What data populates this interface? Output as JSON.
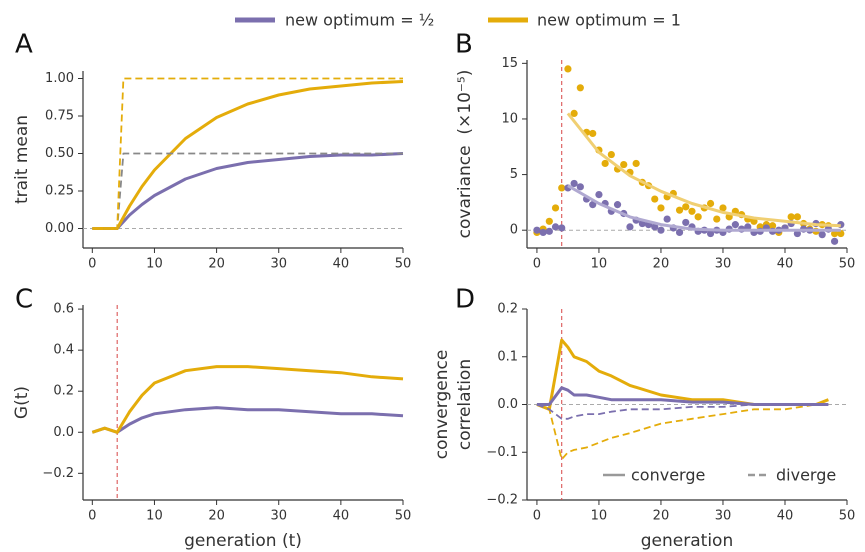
{
  "legend": [
    {
      "label": "new optimum = ½",
      "color": "#7b6fae"
    },
    {
      "label": "new optimum = 1",
      "color": "#e4ac0a"
    }
  ],
  "chart_data": [
    {
      "type": "line",
      "label": "A",
      "ylabel": "trait mean",
      "xlim": [
        -1.5,
        50
      ],
      "ylim": [
        -0.13,
        1.05
      ],
      "xticks": [
        0,
        10,
        20,
        30,
        40,
        50
      ],
      "yticks": [
        {
          "value": 0,
          "label": "0.00"
        },
        {
          "value": 0.25,
          "label": "0.25"
        },
        {
          "value": 0.5,
          "label": "0.50"
        },
        {
          "value": 0.75,
          "label": "0.75"
        },
        {
          "value": 1,
          "label": "1.00"
        }
      ],
      "hline": 0,
      "series": [
        {
          "color": "#7b6fae",
          "style": "solid",
          "x": [
            0,
            2,
            4,
            6,
            8,
            10,
            15,
            20,
            25,
            30,
            35,
            40,
            45,
            50
          ],
          "values": [
            0,
            0,
            0,
            0.09,
            0.16,
            0.22,
            0.33,
            0.4,
            0.44,
            0.46,
            0.48,
            0.49,
            0.49,
            0.5
          ]
        },
        {
          "color": "#e4ac0a",
          "style": "solid",
          "x": [
            0,
            2,
            4,
            6,
            8,
            10,
            15,
            20,
            25,
            30,
            35,
            40,
            45,
            50
          ],
          "values": [
            0,
            0,
            0,
            0.15,
            0.28,
            0.39,
            0.6,
            0.74,
            0.83,
            0.89,
            0.93,
            0.95,
            0.97,
            0.98
          ]
        },
        {
          "color": "#888888",
          "style": "dashed",
          "x": [
            0,
            4,
            5,
            50
          ],
          "values": [
            0,
            0,
            0.5,
            0.5
          ]
        },
        {
          "color": "#e4ac0a",
          "style": "dashed",
          "x": [
            0,
            4,
            5,
            50
          ],
          "values": [
            0,
            0,
            1,
            1
          ]
        }
      ]
    },
    {
      "type": "scatter",
      "label": "B",
      "ylabel": "covariance  (×10⁻⁵)",
      "xlim": [
        -1.6,
        50
      ],
      "ylim": [
        -1.6,
        15.3
      ],
      "xticks": [
        0,
        10,
        20,
        30,
        40,
        50
      ],
      "yticks": [
        0,
        5,
        10,
        15
      ],
      "hline": 0,
      "vline": 4,
      "x": [
        0,
        1,
        2,
        3,
        4,
        5,
        6,
        7,
        8,
        9,
        10,
        11,
        12,
        13,
        14,
        15,
        16,
        17,
        18,
        19,
        20,
        21,
        22,
        23,
        24,
        25,
        26,
        27,
        28,
        29,
        30,
        31,
        32,
        33,
        34,
        35,
        36,
        37,
        38,
        39,
        40,
        41,
        42,
        43,
        44,
        45,
        46,
        47,
        48,
        49
      ],
      "series": [
        {
          "color": "#e4ac0a",
          "style": "dots",
          "values": [
            -0.2,
            0.1,
            0.8,
            2.0,
            3.8,
            14.5,
            10.5,
            12.8,
            8.8,
            8.7,
            7.2,
            6.0,
            6.8,
            5.5,
            5.9,
            5.2,
            6.0,
            4.3,
            4.0,
            2.8,
            2.0,
            3.0,
            3.3,
            1.8,
            2.1,
            1.7,
            1.2,
            2.0,
            2.4,
            1.0,
            2.0,
            1.2,
            1.7,
            1.4,
            1.0,
            0.8,
            0.3,
            0.5,
            0.4,
            -0.2,
            0.2,
            1.2,
            1.2,
            0.6,
            0.1,
            -0.1,
            0.5,
            0.4,
            -0.3,
            -0.3
          ]
        },
        {
          "color": "#7b6fae",
          "style": "dots",
          "values": [
            0.0,
            -0.2,
            -0.1,
            0.3,
            0.2,
            3.8,
            4.2,
            3.9,
            2.8,
            2.3,
            3.2,
            2.4,
            1.7,
            2.3,
            1.5,
            0.3,
            0.9,
            0.6,
            0.5,
            0.3,
            0.0,
            1.0,
            0.2,
            -0.2,
            0.7,
            0.3,
            -0.1,
            0.0,
            -0.3,
            0.0,
            -0.2,
            0.1,
            0.5,
            0.1,
            0.3,
            -0.2,
            -0.1,
            0.2,
            -0.1,
            0.0,
            0.2,
            0.6,
            -0.3,
            0.1,
            0.0,
            0.6,
            -0.4,
            0.1,
            -1.0,
            0.5
          ]
        },
        {
          "color": "#f0cf72",
          "style": "solid",
          "x": [
            5,
            10,
            15,
            20,
            25,
            30,
            35,
            40,
            45,
            49
          ],
          "values": [
            10.5,
            7.0,
            4.9,
            3.5,
            2.4,
            1.6,
            1.1,
            0.8,
            0.5,
            0.4
          ]
        },
        {
          "color": "#b0a9d1",
          "style": "solid",
          "x": [
            5,
            10,
            15,
            20,
            25,
            30,
            35,
            40,
            45,
            49
          ],
          "values": [
            4.0,
            2.4,
            1.2,
            0.5,
            0.1,
            0,
            0,
            0,
            0,
            0
          ]
        }
      ]
    },
    {
      "type": "line",
      "label": "C",
      "ylabel": "G(t)",
      "xlabel": "generation (t)",
      "xlim": [
        -1.5,
        50
      ],
      "ylim": [
        -0.33,
        0.62
      ],
      "xticks": [
        0,
        10,
        20,
        30,
        40,
        50
      ],
      "yticks": [
        {
          "value": -0.2,
          "label": "−0.2"
        },
        {
          "value": 0,
          "label": "0.0"
        },
        0.2,
        0.4,
        0.6
      ],
      "vline": 4,
      "series": [
        {
          "color": "#7b6fae",
          "style": "solid",
          "x": [
            0,
            2,
            4,
            6,
            8,
            10,
            15,
            20,
            25,
            30,
            35,
            40,
            45,
            50
          ],
          "values": [
            0,
            0.02,
            0,
            0.04,
            0.07,
            0.09,
            0.11,
            0.12,
            0.11,
            0.11,
            0.1,
            0.09,
            0.09,
            0.08
          ]
        },
        {
          "color": "#e4ac0a",
          "style": "solid",
          "x": [
            0,
            2,
            4,
            6,
            8,
            10,
            15,
            20,
            25,
            30,
            35,
            40,
            45,
            50
          ],
          "values": [
            0,
            0.02,
            0,
            0.1,
            0.18,
            0.24,
            0.3,
            0.32,
            0.32,
            0.31,
            0.3,
            0.29,
            0.27,
            0.26
          ]
        }
      ]
    },
    {
      "type": "line",
      "label": "D",
      "ylabel": [
        "convergence",
        "correlation"
      ],
      "xlabel": "generation",
      "xlim": [
        -1.6,
        50
      ],
      "ylim": [
        -0.2,
        0.2
      ],
      "xticks": [
        0,
        10,
        20,
        30,
        40,
        50
      ],
      "yticks": [
        {
          "value": -0.2,
          "label": "−0.2"
        },
        {
          "value": -0.1,
          "label": "−0.1"
        },
        {
          "value": 0,
          "label": "0.0"
        },
        0.1,
        0.2
      ],
      "hline": 0,
      "vline": 4,
      "legend": [
        {
          "label": "converge",
          "style": "solid",
          "color": "#999999"
        },
        {
          "label": "diverge",
          "style": "dashed",
          "color": "#999999"
        }
      ],
      "series": [
        {
          "color": "#e4ac0a",
          "style": "solid",
          "x": [
            0,
            2,
            4,
            5,
            6,
            8,
            10,
            12,
            15,
            20,
            25,
            30,
            35,
            40,
            45,
            47
          ],
          "values": [
            0,
            -0.01,
            0.135,
            0.12,
            0.1,
            0.09,
            0.07,
            0.06,
            0.04,
            0.02,
            0.01,
            0.01,
            0,
            0,
            0,
            0.01
          ]
        },
        {
          "color": "#e4ac0a",
          "style": "dashed",
          "x": [
            0,
            2,
            4,
            5,
            6,
            8,
            10,
            12,
            15,
            20,
            25,
            30,
            35,
            40,
            45,
            47
          ],
          "values": [
            0,
            -0.01,
            -0.115,
            -0.1,
            -0.095,
            -0.09,
            -0.08,
            -0.07,
            -0.06,
            -0.04,
            -0.03,
            -0.02,
            -0.01,
            -0.01,
            0,
            0
          ]
        },
        {
          "color": "#7b6fae",
          "style": "solid",
          "x": [
            0,
            2,
            4,
            5,
            6,
            8,
            10,
            12,
            15,
            20,
            25,
            30,
            35,
            40,
            45,
            47
          ],
          "values": [
            0,
            0,
            0.035,
            0.03,
            0.02,
            0.02,
            0.015,
            0.01,
            0.01,
            0.01,
            0.005,
            0.005,
            0,
            0,
            0,
            0
          ]
        },
        {
          "color": "#7b6fae",
          "style": "dashed",
          "x": [
            0,
            2,
            4,
            5,
            6,
            8,
            10,
            12,
            15,
            20,
            25,
            30,
            35,
            40,
            45,
            47
          ],
          "values": [
            0,
            -0.01,
            -0.03,
            -0.03,
            -0.025,
            -0.02,
            -0.02,
            -0.015,
            -0.01,
            -0.01,
            -0.005,
            -0.005,
            0,
            0,
            0,
            0
          ]
        }
      ]
    }
  ]
}
